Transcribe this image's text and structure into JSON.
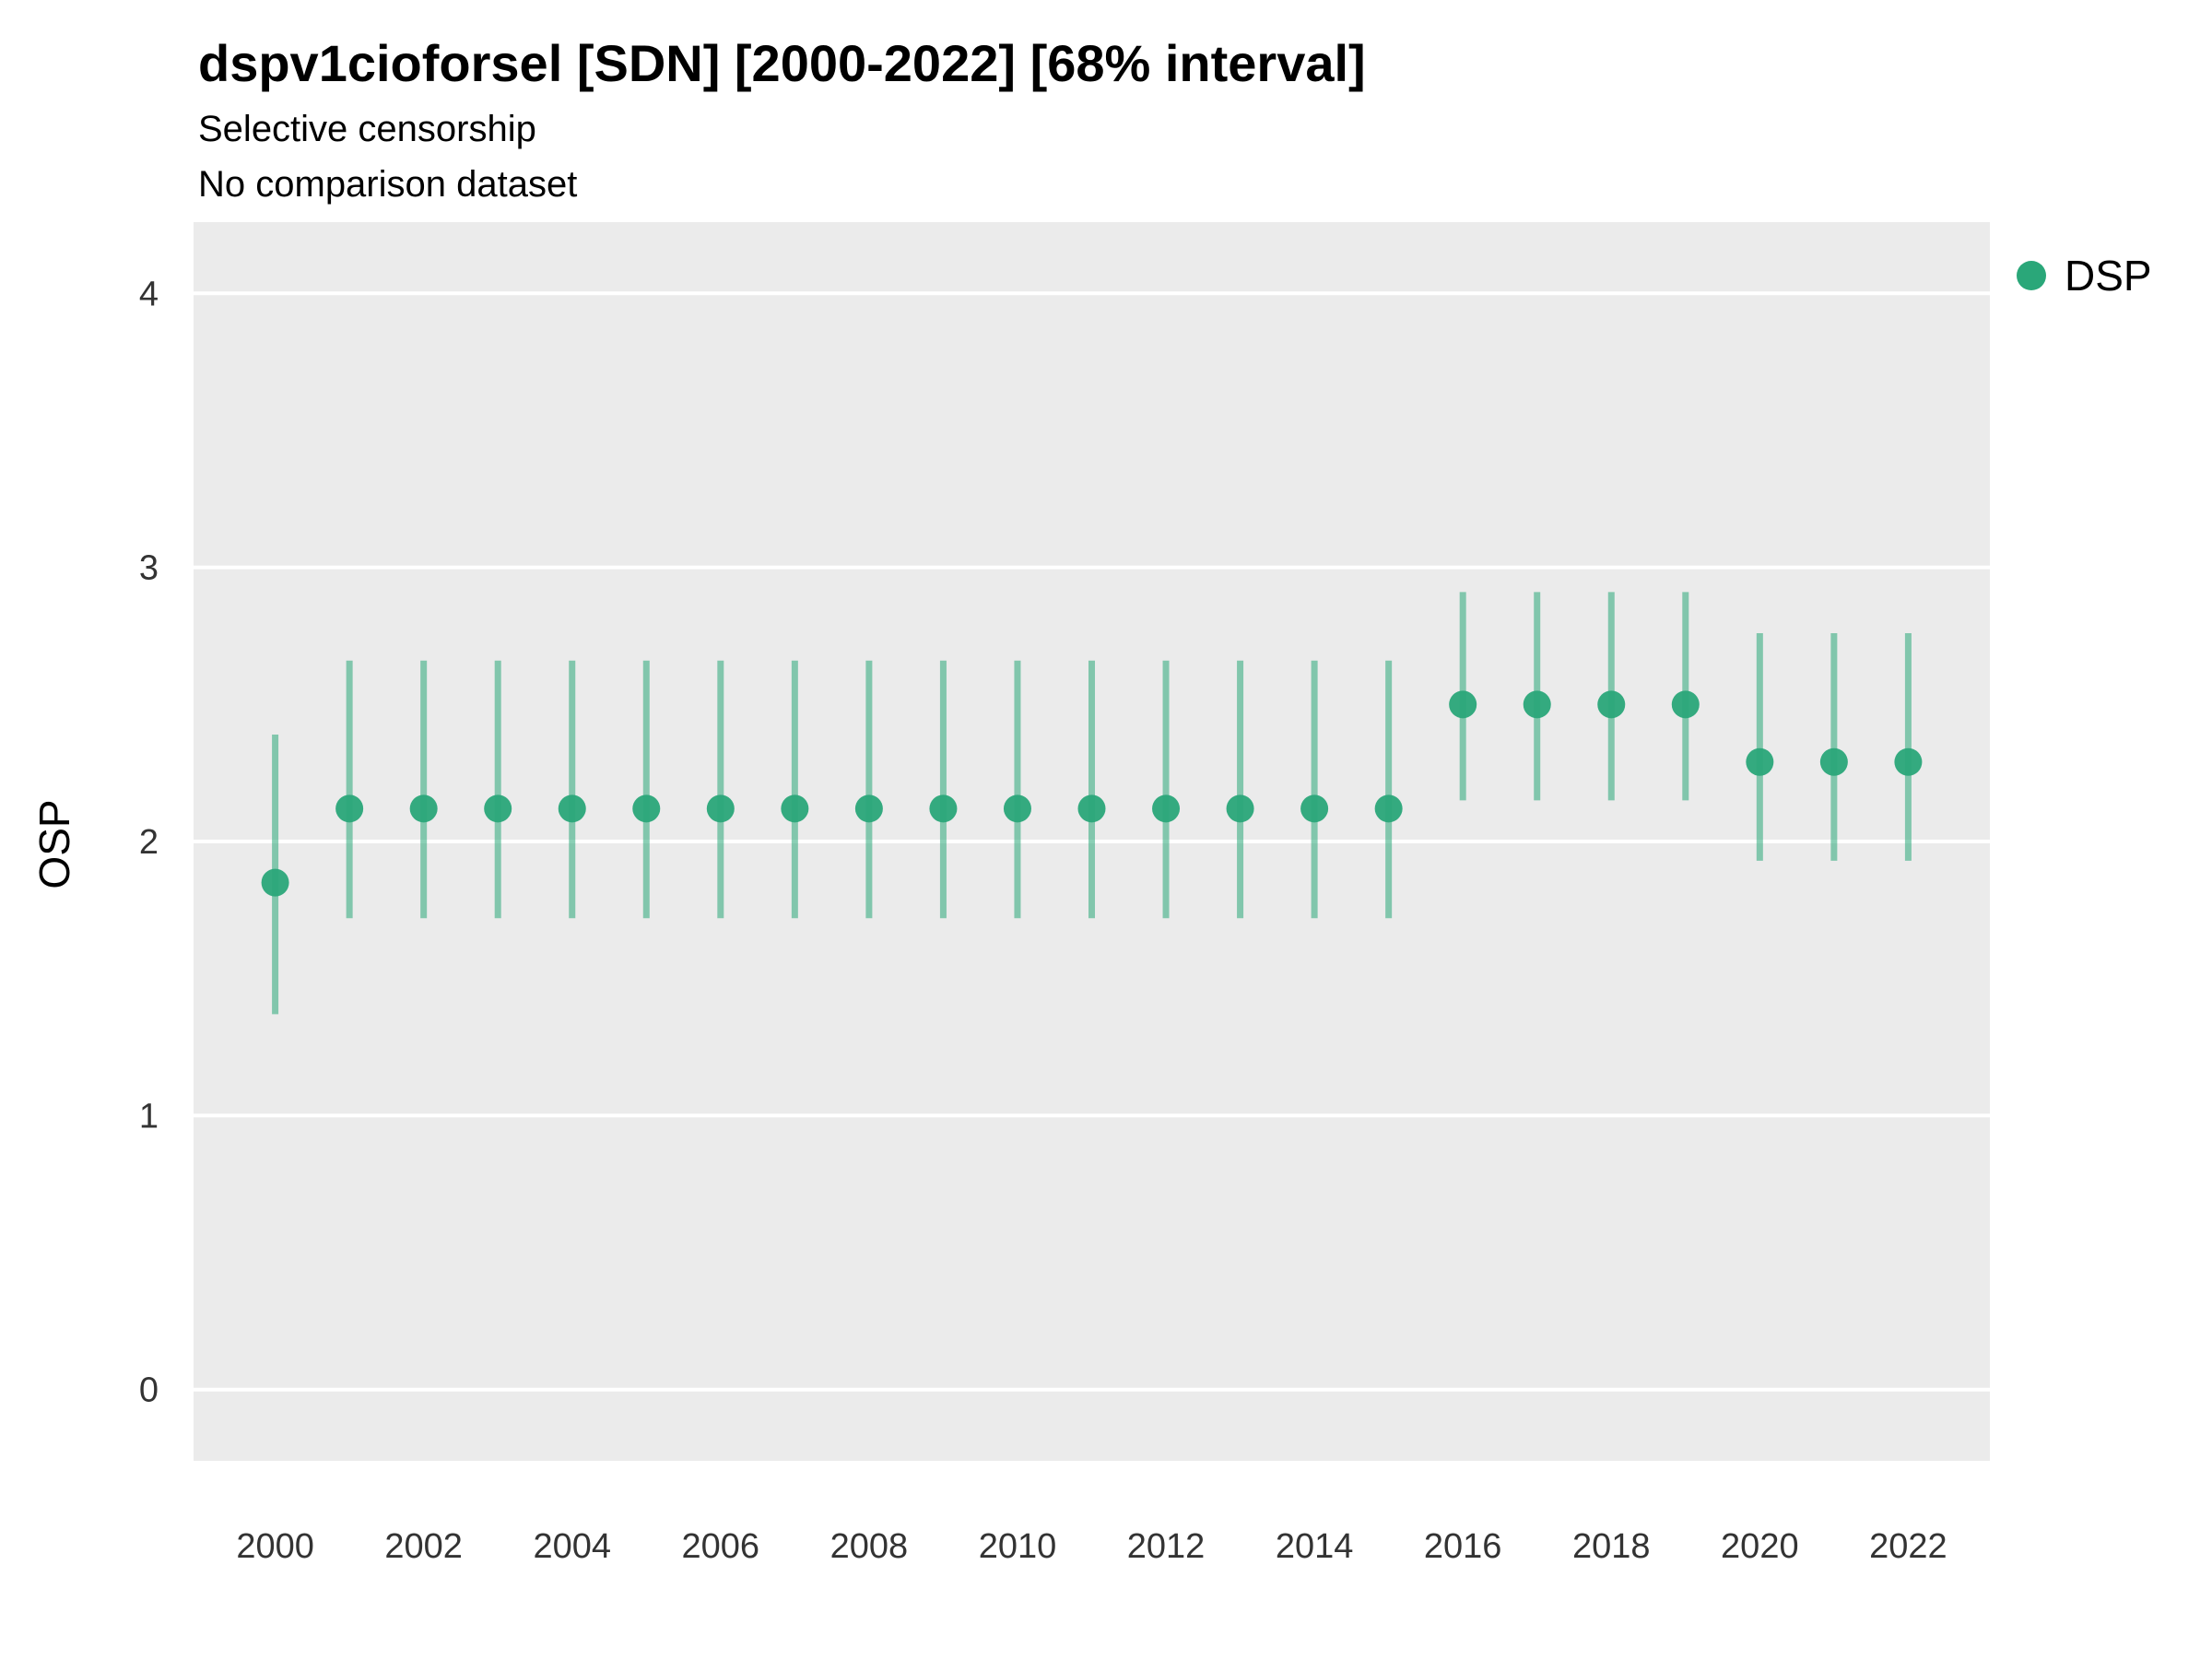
{
  "header": {
    "title": "dspv1cioforsel [SDN] [2000-2022] [68% interval]",
    "subtitle1": "Selective censorship",
    "subtitle2": "No comparison dataset"
  },
  "axes": {
    "ylabel": "OSP",
    "y_ticks": [
      0,
      1,
      2,
      3,
      4
    ],
    "x_ticks": [
      2000,
      2002,
      2004,
      2006,
      2008,
      2010,
      2012,
      2014,
      2016,
      2018,
      2020,
      2022
    ]
  },
  "legend": {
    "label": "DSP"
  },
  "colors": {
    "point": "#2aa779",
    "bar": "#2aa779",
    "panel": "#ebebeb",
    "grid": "#ffffff",
    "tick_text": "#333333"
  },
  "chart_data": {
    "type": "scatter",
    "title": "dspv1cioforsel [SDN] [2000-2022] [68% interval]",
    "subtitle": "Selective censorship / No comparison dataset",
    "xlabel": "",
    "ylabel": "OSP",
    "xlim": [
      1998.9,
      2023.1
    ],
    "ylim": [
      -0.26,
      4.26
    ],
    "grid": "horizontal-major",
    "legend_position": "right-top",
    "interval": "68%",
    "series": [
      {
        "name": "DSP",
        "x": [
          2000,
          2001,
          2002,
          2003,
          2004,
          2005,
          2006,
          2007,
          2008,
          2009,
          2010,
          2011,
          2012,
          2013,
          2014,
          2015,
          2016,
          2017,
          2018,
          2019,
          2020,
          2021,
          2022
        ],
        "y": [
          1.85,
          2.12,
          2.12,
          2.12,
          2.12,
          2.12,
          2.12,
          2.12,
          2.12,
          2.12,
          2.12,
          2.12,
          2.12,
          2.12,
          2.12,
          2.12,
          2.5,
          2.5,
          2.5,
          2.5,
          2.29,
          2.29,
          2.29
        ],
        "low": [
          1.37,
          1.72,
          1.72,
          1.72,
          1.72,
          1.72,
          1.72,
          1.72,
          1.72,
          1.72,
          1.72,
          1.72,
          1.72,
          1.72,
          1.72,
          1.72,
          2.15,
          2.15,
          2.15,
          2.15,
          1.93,
          1.93,
          1.93
        ],
        "high": [
          2.39,
          2.66,
          2.66,
          2.66,
          2.66,
          2.66,
          2.66,
          2.66,
          2.66,
          2.66,
          2.66,
          2.66,
          2.66,
          2.66,
          2.66,
          2.66,
          2.91,
          2.91,
          2.91,
          2.91,
          2.76,
          2.76,
          2.76
        ]
      }
    ]
  }
}
